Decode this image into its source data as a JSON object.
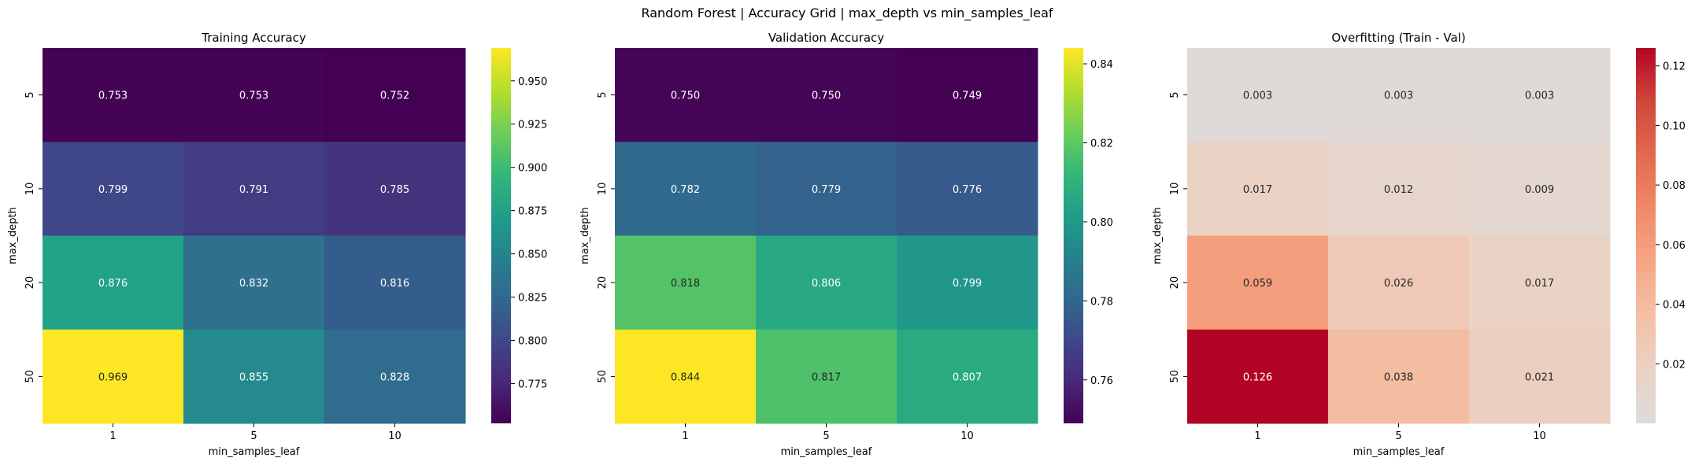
{
  "suptitle": "Random Forest | Accuracy Grid | max_depth vs min_samples_leaf",
  "chart_data": [
    {
      "type": "heatmap",
      "title": "Training Accuracy",
      "xlabel": "min_samples_leaf",
      "ylabel": "max_depth",
      "x_categories": [
        "1",
        "5",
        "10"
      ],
      "y_categories": [
        "5",
        "10",
        "20",
        "50"
      ],
      "values": [
        [
          0.753,
          0.753,
          0.752
        ],
        [
          0.799,
          0.791,
          0.785
        ],
        [
          0.876,
          0.832,
          0.816
        ],
        [
          0.969,
          0.855,
          0.828
        ]
      ],
      "colormap": "viridis",
      "vmin": 0.752,
      "vmax": 0.969,
      "colorbar_ticks": [
        "0.775",
        "0.800",
        "0.825",
        "0.850",
        "0.875",
        "0.900",
        "0.925",
        "0.950"
      ]
    },
    {
      "type": "heatmap",
      "title": "Validation Accuracy",
      "xlabel": "min_samples_leaf",
      "ylabel": "max_depth",
      "x_categories": [
        "1",
        "5",
        "10"
      ],
      "y_categories": [
        "5",
        "10",
        "20",
        "50"
      ],
      "values": [
        [
          0.75,
          0.75,
          0.749
        ],
        [
          0.782,
          0.779,
          0.776
        ],
        [
          0.818,
          0.806,
          0.799
        ],
        [
          0.844,
          0.817,
          0.807
        ]
      ],
      "colormap": "viridis",
      "vmin": 0.749,
      "vmax": 0.844,
      "colorbar_ticks": [
        "0.76",
        "0.78",
        "0.80",
        "0.82",
        "0.84"
      ]
    },
    {
      "type": "heatmap",
      "title": "Overfitting (Train - Val)",
      "xlabel": "min_samples_leaf",
      "ylabel": "max_depth",
      "x_categories": [
        "1",
        "5",
        "10"
      ],
      "y_categories": [
        "5",
        "10",
        "20",
        "50"
      ],
      "values": [
        [
          0.003,
          0.003,
          0.003
        ],
        [
          0.017,
          0.012,
          0.009
        ],
        [
          0.059,
          0.026,
          0.017
        ],
        [
          0.126,
          0.038,
          0.021
        ]
      ],
      "colormap": "coolwarm_upper",
      "vmin": 0.0,
      "vmax": 0.126,
      "colorbar_ticks": [
        "0.02",
        "0.04",
        "0.06",
        "0.08",
        "0.10",
        "0.12"
      ]
    }
  ]
}
